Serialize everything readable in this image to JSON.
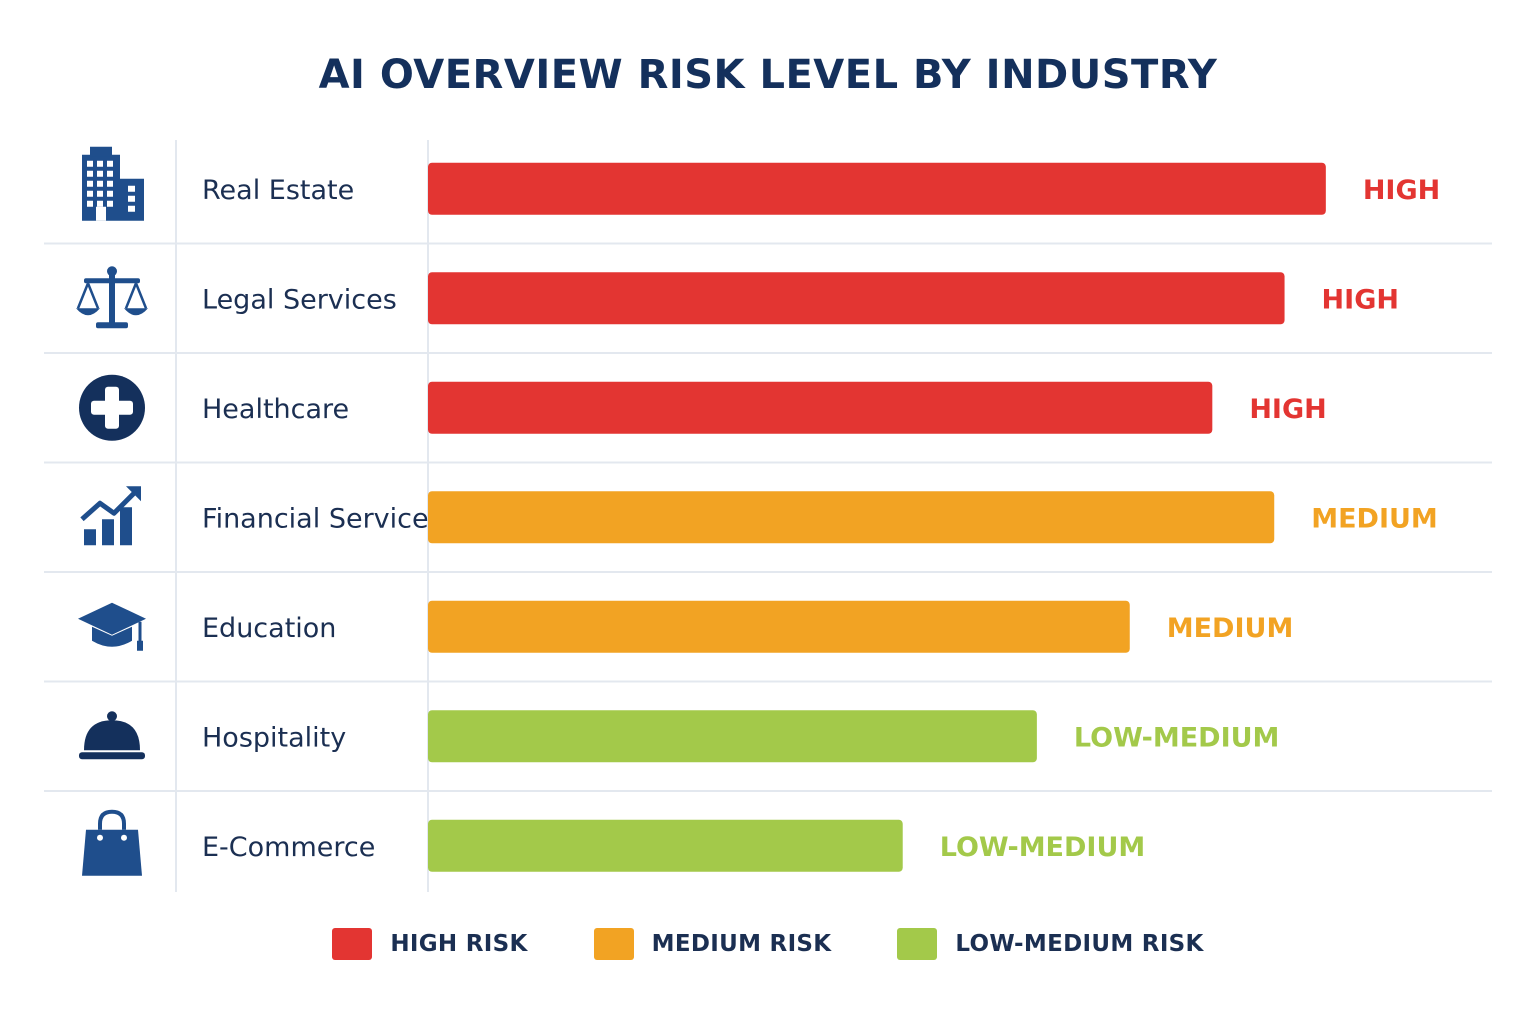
{
  "chart_data": {
    "type": "bar",
    "orientation": "horizontal",
    "title": "AI OVERVIEW RISK LEVEL BY INDUSTRY",
    "categories": [
      "Real Estate",
      "Legal Services",
      "Healthcare",
      "Financial Services",
      "Education",
      "Hospitality",
      "E-Commerce"
    ],
    "icons": [
      "building-icon",
      "scales-icon",
      "medical-cross-icon",
      "growth-chart-icon",
      "graduation-cap-icon",
      "service-bell-icon",
      "shopping-bag-icon"
    ],
    "values": [
      0.87,
      0.83,
      0.76,
      0.82,
      0.68,
      0.59,
      0.46
    ],
    "levels": [
      "HIGH",
      "HIGH",
      "HIGH",
      "MEDIUM",
      "MEDIUM",
      "LOW-MEDIUM",
      "LOW-MEDIUM"
    ],
    "level_colors": {
      "HIGH": "#e33532",
      "MEDIUM": "#f2a323",
      "LOW-MEDIUM": "#a3c94a"
    },
    "legend": [
      {
        "label": "HIGH RISK",
        "level": "HIGH"
      },
      {
        "label": "MEDIUM RISK",
        "level": "MEDIUM"
      },
      {
        "label": "LOW-MEDIUM RISK",
        "level": "LOW-MEDIUM"
      }
    ],
    "xlim": [
      0,
      1
    ],
    "legend_position": "bottom",
    "grid": false
  },
  "colors": {
    "icon": "#1f4e8c",
    "icon_dark": "#14305c",
    "text": "#1b2f52",
    "divider": "#e3e8ef"
  }
}
